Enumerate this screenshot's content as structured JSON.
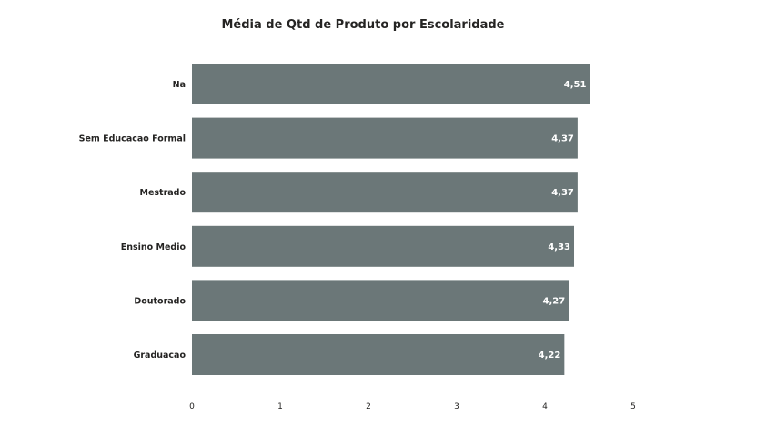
{
  "chart_data": {
    "type": "bar",
    "orientation": "horizontal",
    "title": "Média de Qtd de Produto por Escolaridade",
    "xlabel": "",
    "ylabel": "",
    "categories": [
      "Na",
      "Sem Educacao Formal",
      "Mestrado",
      "Ensino Medio",
      "Doutorado",
      "Graduacao"
    ],
    "values": [
      4.51,
      4.37,
      4.37,
      4.33,
      4.27,
      4.22
    ],
    "value_labels": [
      "4,51",
      "4,37",
      "4,37",
      "4,33",
      "4,27",
      "4,22"
    ],
    "xlim": [
      0,
      5
    ],
    "x_ticks": [
      "0",
      "1",
      "2",
      "3",
      "4",
      "5"
    ],
    "grid": false,
    "legend": "none",
    "bar_color": "#6b7778",
    "label_color": "#ffffff"
  }
}
